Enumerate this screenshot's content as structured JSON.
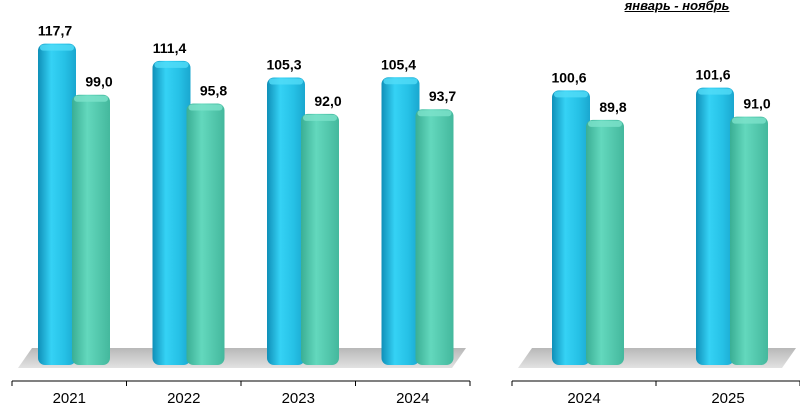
{
  "colors": {
    "series_a": "#2bc7ea",
    "series_a_dark": "#0c8bb0",
    "series_b": "#56ccb0",
    "series_b_dark": "#2d9c83",
    "floor": "#c8c8c8",
    "axis": "#000000"
  },
  "chart_data": [
    {
      "type": "bar",
      "title": "",
      "categories": [
        "2021",
        "2022",
        "2023",
        "2024"
      ],
      "series": [
        {
          "values": [
            117.7,
            111.4,
            105.3,
            105.4
          ]
        },
        {
          "values": [
            99.0,
            95.8,
            92.0,
            93.7
          ]
        }
      ],
      "data_labels": {
        "a": [
          "117,7",
          "111,4",
          "105,3",
          "105,4"
        ],
        "b": [
          "99,0",
          "95,8",
          "92,0",
          "93,7"
        ]
      },
      "xlabel": "",
      "ylabel": "",
      "ylim": [
        0,
        120
      ],
      "grid": false,
      "style": "3d-cylinder"
    },
    {
      "type": "bar",
      "title": "январь - ноябрь",
      "categories": [
        "2024",
        "2025"
      ],
      "series": [
        {
          "values": [
            100.6,
            101.6
          ]
        },
        {
          "values": [
            89.8,
            91.0
          ]
        }
      ],
      "data_labels": {
        "a": [
          "100,6",
          "101,6"
        ],
        "b": [
          "89,8",
          "91,0"
        ]
      },
      "xlabel": "",
      "ylabel": "",
      "ylim": [
        0,
        120
      ],
      "grid": false,
      "style": "3d-cylinder"
    }
  ]
}
